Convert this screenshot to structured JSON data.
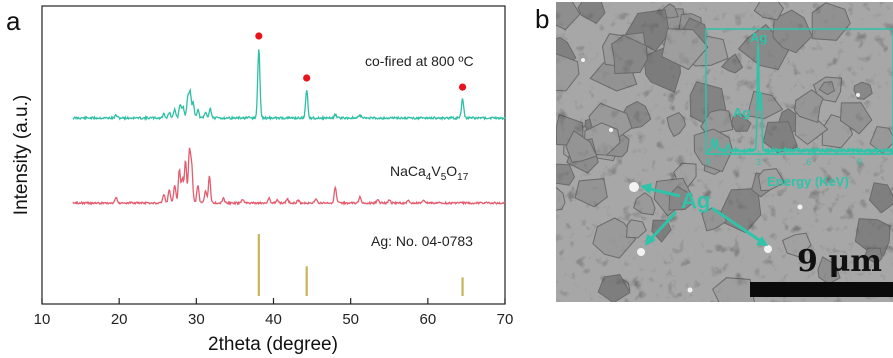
{
  "panel_a_label": "a",
  "panel_b_label": "b",
  "chart_data": {
    "type": "line",
    "title": "",
    "xlabel": "2theta (degree)",
    "ylabel": "Intensity (a.u.)",
    "xlim": [
      10,
      70
    ],
    "xticks": [
      10,
      20,
      30,
      40,
      50,
      60,
      70
    ],
    "series": [
      {
        "name": "co-fired at 800 ºC",
        "color": "#2ebfa5",
        "peaks": [
          [
            19.6,
            0.04
          ],
          [
            25.8,
            0.06
          ],
          [
            26.5,
            0.08
          ],
          [
            27.2,
            0.12
          ],
          [
            27.9,
            0.2
          ],
          [
            28.3,
            0.15
          ],
          [
            28.9,
            0.3
          ],
          [
            29.2,
            0.35
          ],
          [
            29.6,
            0.22
          ],
          [
            30.2,
            0.12
          ],
          [
            31.2,
            0.08
          ],
          [
            31.8,
            0.14
          ],
          [
            38.1,
            1.0
          ],
          [
            44.3,
            0.4
          ],
          [
            48.0,
            0.05
          ],
          [
            51.2,
            0.04
          ],
          [
            64.5,
            0.27
          ]
        ],
        "markers": [
          38.1,
          44.3,
          64.5
        ]
      },
      {
        "name": "NaCa4V5O17",
        "color": "#e45c6e",
        "peaks": [
          [
            19.6,
            0.1
          ],
          [
            25.8,
            0.15
          ],
          [
            26.5,
            0.22
          ],
          [
            27.2,
            0.3
          ],
          [
            27.8,
            0.55
          ],
          [
            28.2,
            0.4
          ],
          [
            28.6,
            0.7
          ],
          [
            29.1,
            0.85
          ],
          [
            29.4,
            0.6
          ],
          [
            30.2,
            0.3
          ],
          [
            31.2,
            0.2
          ],
          [
            31.7,
            0.45
          ],
          [
            33.5,
            0.08
          ],
          [
            36.0,
            0.06
          ],
          [
            39.4,
            0.08
          ],
          [
            40.5,
            0.05
          ],
          [
            41.8,
            0.07
          ],
          [
            43.2,
            0.05
          ],
          [
            45.5,
            0.06
          ],
          [
            48.0,
            0.25
          ],
          [
            51.2,
            0.1
          ],
          [
            53.5,
            0.06
          ],
          [
            55.0,
            0.05
          ],
          [
            57.5,
            0.04
          ],
          [
            59.5,
            0.04
          ]
        ]
      },
      {
        "name": "Ag: No. 04-0783",
        "color": "#c8b45a",
        "type": "stick",
        "sticks": [
          [
            38.1,
            1.0
          ],
          [
            44.3,
            0.48
          ],
          [
            64.5,
            0.3
          ]
        ]
      }
    ],
    "legend": "inline labels on the right"
  },
  "series_labels": {
    "cofired_prefix": "co-fired at 800 ",
    "cofired_unit": "ºC",
    "phase_base_na": "NaCa",
    "phase_sub_4": "4",
    "phase_base_v": "V",
    "phase_sub_5": "5",
    "phase_base_o": "O",
    "phase_sub_17": "17",
    "ref": "Ag: No. 04-0783"
  },
  "inset": {
    "peak_label_top": "Ag",
    "peak_label_low": "Ag",
    "x_ticks": [
      "0",
      "3",
      "6",
      "9"
    ],
    "xlabel": "Energy (KeV)",
    "color": "#2fc3a9"
  },
  "sem": {
    "particle_label": "Ag",
    "scale_bar_label": "9 μm"
  }
}
